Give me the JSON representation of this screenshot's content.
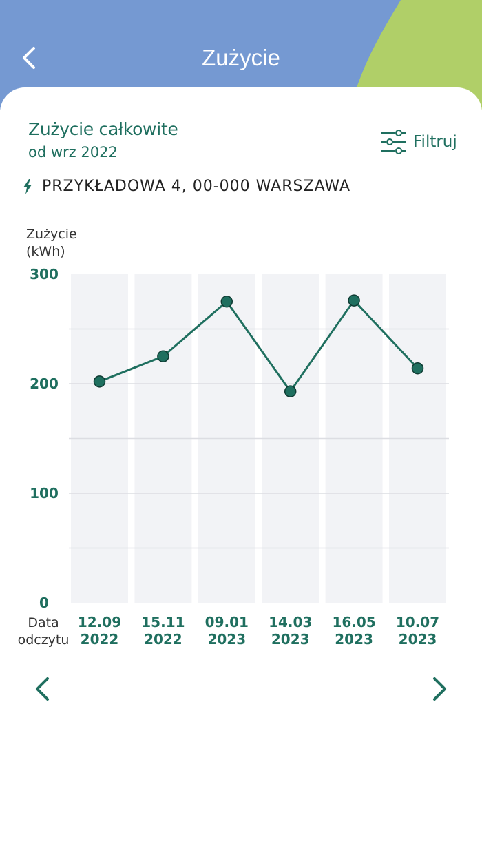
{
  "header": {
    "title": "Zużycie",
    "back_icon": "chevron-left-icon"
  },
  "summary": {
    "title": "Zużycie całkowite",
    "subtitle": "od wrz 2022"
  },
  "filter": {
    "label": "Filtruj",
    "icon": "sliders-icon"
  },
  "address": {
    "text": "PRZYKŁADOWA 4, 00-000 WARSZAWA",
    "icon": "lightning-icon"
  },
  "colors": {
    "header": "#7599d2",
    "accent_green": "#b0cf68",
    "primary": "#1f6f5f",
    "column_bg": "#f2f3f6"
  },
  "chart_data": {
    "type": "line",
    "ylabel_lines": [
      "Zużycie",
      "(kWh)"
    ],
    "xlabel_lines": [
      "Data",
      "odczytu"
    ],
    "ylim": [
      0,
      300
    ],
    "yticks": [
      0,
      100,
      200,
      300
    ],
    "grid": true,
    "categories": [
      [
        "12.09",
        "2022"
      ],
      [
        "15.11",
        "2022"
      ],
      [
        "09.01",
        "2023"
      ],
      [
        "14.03",
        "2023"
      ],
      [
        "16.05",
        "2023"
      ],
      [
        "10.07",
        "2023"
      ]
    ],
    "values": [
      202,
      225,
      275,
      193,
      276,
      214
    ]
  },
  "navigation": {
    "prev_icon": "chevron-left-icon",
    "next_icon": "chevron-right-icon"
  }
}
